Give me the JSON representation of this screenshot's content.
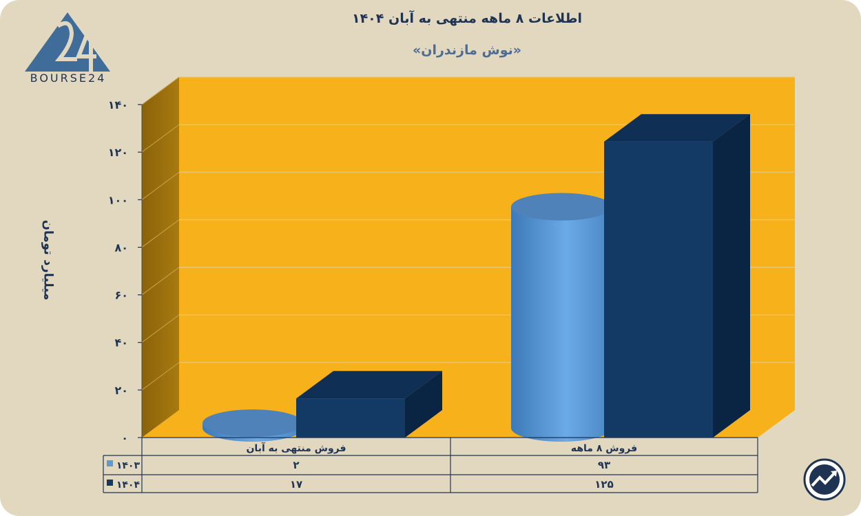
{
  "title": "اطلاعات ۸ ماهه منتهی به آبان ۱۴۰۴",
  "subtitle": "«نوش مازندران»",
  "logo": {
    "text": "BOURSE24",
    "mark": "24"
  },
  "chart_data": {
    "type": "bar",
    "ylabel": "میلیارد تومان",
    "ylim": [
      0,
      140
    ],
    "ytick_labels": [
      "۰",
      "۲۰",
      "۴۰",
      "۶۰",
      "۸۰",
      "۱۰۰",
      "۱۲۰",
      "۱۴۰"
    ],
    "categories": [
      "فروش منتهی به  آبان",
      "فروش ۸  ماهه"
    ],
    "series": [
      {
        "name": "۱۴۰۳",
        "values": [
          2,
          93
        ],
        "value_labels": [
          "۲",
          "۹۳"
        ],
        "shape": "cylinder",
        "color": "#5b9bd5"
      },
      {
        "name": "۱۴۰۴",
        "values": [
          17,
          125
        ],
        "value_labels": [
          "۱۷",
          "۱۲۵"
        ],
        "shape": "box",
        "color": "#133a65"
      }
    ],
    "grid": true,
    "legend": "data-table",
    "colors": {
      "wall": "#f7b21b",
      "side_wall": "#9b700c",
      "floor": "#f7b21b"
    }
  },
  "icons": {
    "corner": "trend-up-icon"
  }
}
